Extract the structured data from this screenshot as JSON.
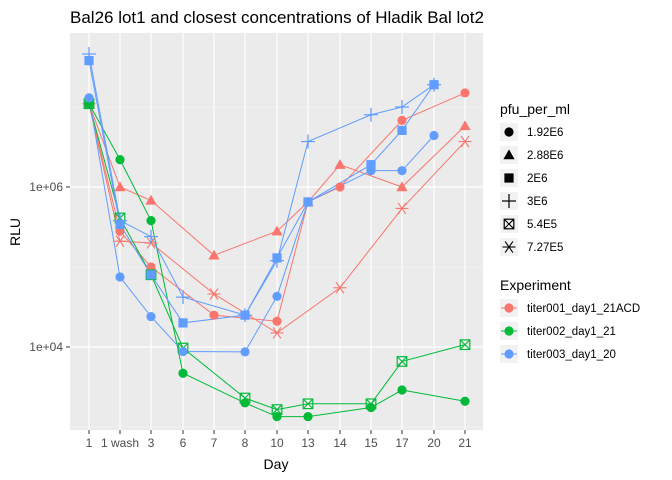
{
  "chart_data": {
    "type": "line",
    "title": "Bal26 lot1 and closest concentrations of Hladik Bal lot2",
    "xlabel": "Day",
    "ylabel": "RLU",
    "y_scale": "log10",
    "ylim": [
      1200,
      60000000
    ],
    "categories": [
      "1",
      "1 wash",
      "3",
      "6",
      "7",
      "8",
      "10",
      "13",
      "14",
      "15",
      "17",
      "20",
      "21"
    ],
    "y_ticks": [
      {
        "label": "1e+04",
        "value": 10000
      },
      {
        "label": "1e+06",
        "value": 1000000
      }
    ],
    "grid": true,
    "legend_position": "right",
    "shape_legend": {
      "title": "pfu_per_ml",
      "entries": [
        {
          "label": "1.92E6",
          "shape": "circle"
        },
        {
          "label": "2.88E6",
          "shape": "triangle"
        },
        {
          "label": "2E6",
          "shape": "square"
        },
        {
          "label": "3E6",
          "shape": "plus"
        },
        {
          "label": "5.4E5",
          "shape": "square-x"
        },
        {
          "label": "7.27E5",
          "shape": "asterisk"
        }
      ]
    },
    "color_legend": {
      "title": "Experiment",
      "entries": [
        {
          "label": "titer001_day1_21ACD",
          "color": "#F8766D"
        },
        {
          "label": "titer002_day1_21",
          "color": "#00BA38"
        },
        {
          "label": "titer003_day1_20",
          "color": "#619CFF"
        }
      ]
    },
    "series": [
      {
        "experiment": "titer001_day1_21ACD",
        "pfu": "2.88E6",
        "color": "#F8766D",
        "shape": "triangle",
        "points": [
          [
            "1",
            11000000
          ],
          [
            "1 wash",
            1000000
          ],
          [
            "3",
            680000
          ],
          [
            "7",
            140000
          ],
          [
            "10",
            280000
          ],
          [
            "13",
            650000
          ],
          [
            "14",
            1900000
          ],
          [
            "17",
            1000000
          ],
          [
            "21",
            5800000
          ]
        ]
      },
      {
        "experiment": "titer001_day1_21ACD",
        "pfu": "1.92E6",
        "color": "#F8766D",
        "shape": "circle",
        "points": [
          [
            "1",
            11000000
          ],
          [
            "1 wash",
            280000
          ],
          [
            "3",
            100000
          ],
          [
            "7",
            25000
          ],
          [
            "10",
            21000
          ],
          [
            "13",
            650000
          ],
          [
            "14",
            1000000
          ],
          [
            "17",
            6800000
          ],
          [
            "21",
            15000000
          ]
        ]
      },
      {
        "experiment": "titer001_day1_21ACD",
        "pfu": "7.27E5",
        "color": "#F8766D",
        "shape": "asterisk",
        "points": [
          [
            "1",
            11000000
          ],
          [
            "1 wash",
            210000
          ],
          [
            "3",
            200000
          ],
          [
            "7",
            46000
          ],
          [
            "10",
            15000
          ],
          [
            "14",
            55000
          ],
          [
            "17",
            540000
          ],
          [
            "21",
            3700000
          ]
        ]
      },
      {
        "experiment": "titer002_day1_21",
        "pfu": "1.92E6",
        "color": "#00BA38",
        "shape": "circle",
        "points": [
          [
            "1",
            11000000
          ],
          [
            "1 wash",
            2200000
          ],
          [
            "3",
            380000
          ],
          [
            "6",
            4700
          ],
          [
            "8",
            2000
          ],
          [
            "10",
            1350
          ],
          [
            "13",
            1350
          ],
          [
            "15",
            1750
          ],
          [
            "17",
            2900
          ],
          [
            "21",
            2100
          ]
        ]
      },
      {
        "experiment": "titer002_day1_21",
        "pfu": "5.4E5",
        "color": "#00BA38",
        "shape": "square-x",
        "points": [
          [
            "1",
            11000000
          ],
          [
            "1 wash",
            410000
          ],
          [
            "3",
            80000
          ],
          [
            "6",
            9700
          ],
          [
            "8",
            2300
          ],
          [
            "10",
            1650
          ],
          [
            "13",
            1950
          ],
          [
            "15",
            1950
          ],
          [
            "17",
            6600
          ],
          [
            "21",
            10700
          ]
        ]
      },
      {
        "experiment": "titer003_day1_20",
        "pfu": "1.92E6",
        "color": "#619CFF",
        "shape": "circle",
        "points": [
          [
            "1",
            13000000
          ],
          [
            "1 wash",
            75000
          ],
          [
            "3",
            24000
          ],
          [
            "6",
            8800
          ],
          [
            "8",
            8700
          ],
          [
            "10",
            43000
          ],
          [
            "13",
            650000
          ],
          [
            "15",
            1600000
          ],
          [
            "17",
            1600000
          ],
          [
            "20",
            4400000
          ]
        ]
      },
      {
        "experiment": "titer003_day1_20",
        "pfu": "2E6",
        "color": "#619CFF",
        "shape": "square",
        "points": [
          [
            "1",
            38000000
          ],
          [
            "1 wash",
            340000
          ],
          [
            "3",
            80000
          ],
          [
            "6",
            20000
          ],
          [
            "8",
            25000
          ],
          [
            "10",
            130000
          ],
          [
            "13",
            650000
          ],
          [
            "15",
            1900000
          ],
          [
            "17",
            5100000
          ],
          [
            "20",
            19000000
          ]
        ]
      },
      {
        "experiment": "titer003_day1_20",
        "pfu": "3E6",
        "color": "#619CFF",
        "shape": "plus",
        "points": [
          [
            "1",
            46000000
          ],
          [
            "1 wash",
            380000
          ],
          [
            "3",
            240000
          ],
          [
            "6",
            42000
          ],
          [
            "8",
            25000
          ],
          [
            "10",
            120000
          ],
          [
            "13",
            3700000
          ],
          [
            "15",
            8000000
          ],
          [
            "17",
            10000000
          ],
          [
            "20",
            19000000
          ]
        ]
      }
    ]
  }
}
